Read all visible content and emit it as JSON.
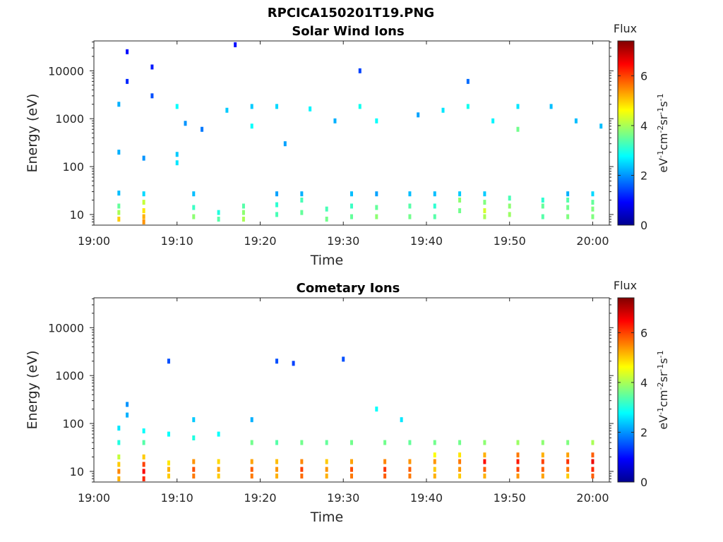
{
  "figure_title": "RPCICA150201T19.PNG",
  "chart_data": [
    {
      "type": "heatmap",
      "title": "Solar Wind Ions",
      "xlabel": "Time",
      "ylabel": "Energy (eV)",
      "x_ticks": [
        "19:00",
        "19:10",
        "19:20",
        "19:30",
        "19:40",
        "19:50",
        "20:00"
      ],
      "x_range": [
        "19:00",
        "20:02"
      ],
      "y_scale": "log",
      "y_ticks": [
        "10",
        "100",
        "1000",
        "10000"
      ],
      "y_tick_values": [
        10,
        100,
        1000,
        10000
      ],
      "y_range": [
        6,
        42000
      ],
      "colorbar": {
        "label": "Flux",
        "units": "eV-1cm-2sr-1s-1",
        "range": [
          0,
          7.4
        ],
        "ticks": [
          "0",
          "2",
          "4",
          "6"
        ],
        "tick_values": [
          0,
          2,
          4,
          6
        ],
        "colormap": "jet"
      },
      "cells": [
        [
          "19:03",
          8,
          5.0
        ],
        [
          "19:03",
          11,
          4.0
        ],
        [
          "19:03",
          15,
          3.5
        ],
        [
          "19:03",
          28,
          2.3
        ],
        [
          "19:03",
          200,
          2.2
        ],
        [
          "19:03",
          2000,
          2.2
        ],
        [
          "19:04",
          6000,
          1.2
        ],
        [
          "19:04",
          25000,
          1.0
        ],
        [
          "19:06",
          7,
          5.4
        ],
        [
          "19:06",
          9,
          5.2
        ],
        [
          "19:06",
          12,
          4.8
        ],
        [
          "19:06",
          18,
          4.2
        ],
        [
          "19:06",
          27,
          2.5
        ],
        [
          "19:06",
          150,
          2.0
        ],
        [
          "19:07",
          3000,
          1.5
        ],
        [
          "19:07",
          12000,
          1.1
        ],
        [
          "19:10",
          180,
          2.4
        ],
        [
          "19:10",
          120,
          2.6
        ],
        [
          "19:10",
          1800,
          2.8
        ],
        [
          "19:11",
          800,
          2.0
        ],
        [
          "19:12",
          9,
          3.8
        ],
        [
          "19:12",
          14,
          3.2
        ],
        [
          "19:12",
          27,
          2.3
        ],
        [
          "19:13",
          600,
          1.8
        ],
        [
          "19:15",
          8,
          3.4
        ],
        [
          "19:15",
          11,
          3.0
        ],
        [
          "19:16",
          1500,
          2.4
        ],
        [
          "19:17",
          35000,
          1.0
        ],
        [
          "19:18",
          8,
          4.0
        ],
        [
          "19:18",
          11,
          3.8
        ],
        [
          "19:18",
          15,
          3.4
        ],
        [
          "19:19",
          1800,
          2.4
        ],
        [
          "19:19",
          700,
          2.8
        ],
        [
          "19:22",
          10,
          3.3
        ],
        [
          "19:22",
          16,
          3.1
        ],
        [
          "19:22",
          27,
          2.1
        ],
        [
          "19:22",
          1800,
          2.5
        ],
        [
          "19:23",
          300,
          2.1
        ],
        [
          "19:25",
          11,
          3.5
        ],
        [
          "19:25",
          20,
          3.3
        ],
        [
          "19:25",
          27,
          2.2
        ],
        [
          "19:26",
          1600,
          2.7
        ],
        [
          "19:28",
          8,
          3.6
        ],
        [
          "19:28",
          13,
          3.3
        ],
        [
          "19:29",
          900,
          2.2
        ],
        [
          "19:31",
          9,
          3.5
        ],
        [
          "19:31",
          15,
          3.2
        ],
        [
          "19:31",
          27,
          2.3
        ],
        [
          "19:32",
          1800,
          2.9
        ],
        [
          "19:32",
          10000,
          1.4
        ],
        [
          "19:34",
          9,
          3.8
        ],
        [
          "19:34",
          14,
          3.5
        ],
        [
          "19:34",
          27,
          2.1
        ],
        [
          "19:34",
          900,
          2.8
        ],
        [
          "19:38",
          9,
          3.6
        ],
        [
          "19:38",
          15,
          3.4
        ],
        [
          "19:38",
          27,
          2.3
        ],
        [
          "19:39",
          1200,
          2.1
        ],
        [
          "19:41",
          9,
          3.4
        ],
        [
          "19:41",
          15,
          3.1
        ],
        [
          "19:41",
          27,
          2.3
        ],
        [
          "19:42",
          1500,
          2.6
        ],
        [
          "19:44",
          12,
          3.6
        ],
        [
          "19:44",
          20,
          3.8
        ],
        [
          "19:44",
          27,
          2.4
        ],
        [
          "19:45",
          1800,
          2.9
        ],
        [
          "19:45",
          6000,
          1.7
        ],
        [
          "19:47",
          9,
          4.0
        ],
        [
          "19:47",
          12,
          4.3
        ],
        [
          "19:47",
          18,
          3.7
        ],
        [
          "19:47",
          27,
          2.4
        ],
        [
          "19:48",
          900,
          2.7
        ],
        [
          "19:50",
          10,
          3.9
        ],
        [
          "19:50",
          15,
          3.8
        ],
        [
          "19:50",
          22,
          3.3
        ],
        [
          "19:51",
          1800,
          2.6
        ],
        [
          "19:51",
          600,
          3.6
        ],
        [
          "19:54",
          9,
          3.4
        ],
        [
          "19:54",
          15,
          3.5
        ],
        [
          "19:54",
          20,
          3.1
        ],
        [
          "19:55",
          1800,
          2.3
        ],
        [
          "19:57",
          9,
          3.7
        ],
        [
          "19:57",
          14,
          3.6
        ],
        [
          "19:57",
          20,
          3.4
        ],
        [
          "19:57",
          27,
          2.2
        ],
        [
          "19:58",
          900,
          2.3
        ],
        [
          "20:00",
          9,
          3.7
        ],
        [
          "20:00",
          13,
          3.7
        ],
        [
          "20:00",
          18,
          3.5
        ],
        [
          "20:00",
          27,
          2.5
        ],
        [
          "20:01",
          700,
          2.3
        ]
      ]
    },
    {
      "type": "heatmap",
      "title": "Cometary Ions",
      "xlabel": "Time",
      "ylabel": "Energy (eV)",
      "x_ticks": [
        "19:00",
        "19:10",
        "19:20",
        "19:30",
        "19:40",
        "19:50",
        "20:00"
      ],
      "x_range": [
        "19:00",
        "20:02"
      ],
      "y_scale": "log",
      "y_ticks": [
        "10",
        "100",
        "1000",
        "10000"
      ],
      "y_tick_values": [
        10,
        100,
        1000,
        10000
      ],
      "y_range": [
        6,
        42000
      ],
      "colorbar": {
        "label": "Flux",
        "units": "eV-1cm-2sr-1s-1",
        "range": [
          0,
          7.4
        ],
        "ticks": [
          "0",
          "2",
          "4",
          "6"
        ],
        "tick_values": [
          0,
          2,
          4,
          6
        ],
        "colormap": "jet"
      },
      "cells": [
        [
          "19:03",
          7,
          5.2
        ],
        [
          "19:03",
          10,
          5.5
        ],
        [
          "19:03",
          14,
          5.0
        ],
        [
          "19:03",
          20,
          4.2
        ],
        [
          "19:03",
          40,
          3.0
        ],
        [
          "19:03",
          80,
          2.6
        ],
        [
          "19:04",
          150,
          2.2
        ],
        [
          "19:04",
          250,
          2.0
        ],
        [
          "19:06",
          7,
          6.2
        ],
        [
          "19:06",
          10,
          6.5
        ],
        [
          "19:06",
          14,
          6.0
        ],
        [
          "19:06",
          20,
          5.0
        ],
        [
          "19:06",
          40,
          3.4
        ],
        [
          "19:06",
          70,
          2.8
        ],
        [
          "19:09",
          8,
          5.0
        ],
        [
          "19:09",
          11,
          5.2
        ],
        [
          "19:09",
          15,
          4.8
        ],
        [
          "19:09",
          60,
          2.8
        ],
        [
          "19:09",
          2000,
          1.5
        ],
        [
          "19:12",
          8,
          5.6
        ],
        [
          "19:12",
          11,
          5.9
        ],
        [
          "19:12",
          16,
          5.4
        ],
        [
          "19:12",
          50,
          3.0
        ],
        [
          "19:12",
          120,
          2.4
        ],
        [
          "19:15",
          8,
          5.0
        ],
        [
          "19:15",
          11,
          5.3
        ],
        [
          "19:15",
          16,
          4.9
        ],
        [
          "19:15",
          60,
          2.8
        ],
        [
          "19:19",
          8,
          5.6
        ],
        [
          "19:19",
          11,
          5.8
        ],
        [
          "19:19",
          16,
          5.3
        ],
        [
          "19:19",
          40,
          3.6
        ],
        [
          "19:19",
          120,
          2.2
        ],
        [
          "19:22",
          8,
          5.2
        ],
        [
          "19:22",
          11,
          5.4
        ],
        [
          "19:22",
          16,
          5.1
        ],
        [
          "19:22",
          40,
          3.4
        ],
        [
          "19:22",
          2000,
          1.5
        ],
        [
          "19:25",
          8,
          5.7
        ],
        [
          "19:25",
          11,
          6.0
        ],
        [
          "19:25",
          16,
          5.5
        ],
        [
          "19:25",
          40,
          3.6
        ],
        [
          "19:24",
          1800,
          1.4
        ],
        [
          "19:28",
          8,
          5.2
        ],
        [
          "19:28",
          11,
          5.4
        ],
        [
          "19:28",
          16,
          5.0
        ],
        [
          "19:28",
          40,
          3.5
        ],
        [
          "19:31",
          8,
          5.6
        ],
        [
          "19:31",
          11,
          5.9
        ],
        [
          "19:31",
          16,
          5.3
        ],
        [
          "19:31",
          40,
          3.6
        ],
        [
          "19:30",
          2200,
          1.5
        ],
        [
          "19:35",
          8,
          5.8
        ],
        [
          "19:35",
          11,
          6.1
        ],
        [
          "19:35",
          16,
          5.5
        ],
        [
          "19:35",
          40,
          3.6
        ],
        [
          "19:34",
          200,
          2.8
        ],
        [
          "19:38",
          8,
          5.6
        ],
        [
          "19:38",
          11,
          5.8
        ],
        [
          "19:38",
          16,
          5.4
        ],
        [
          "19:38",
          40,
          3.5
        ],
        [
          "19:37",
          120,
          2.6
        ],
        [
          "19:41",
          8,
          5.2
        ],
        [
          "19:41",
          11,
          5.0
        ],
        [
          "19:41",
          16,
          5.4
        ],
        [
          "19:41",
          22,
          4.6
        ],
        [
          "19:41",
          40,
          3.6
        ],
        [
          "19:44",
          8,
          5.0
        ],
        [
          "19:44",
          11,
          5.4
        ],
        [
          "19:44",
          16,
          5.6
        ],
        [
          "19:44",
          22,
          4.8
        ],
        [
          "19:44",
          40,
          3.6
        ],
        [
          "19:47",
          8,
          5.2
        ],
        [
          "19:47",
          11,
          5.8
        ],
        [
          "19:47",
          16,
          6.4
        ],
        [
          "19:47",
          22,
          5.2
        ],
        [
          "19:47",
          40,
          3.8
        ],
        [
          "19:51",
          8,
          5.4
        ],
        [
          "19:51",
          11,
          6.0
        ],
        [
          "19:51",
          16,
          6.3
        ],
        [
          "19:51",
          22,
          5.6
        ],
        [
          "19:51",
          40,
          3.9
        ],
        [
          "19:54",
          8,
          5.3
        ],
        [
          "19:54",
          11,
          5.8
        ],
        [
          "19:54",
          16,
          6.0
        ],
        [
          "19:54",
          22,
          5.2
        ],
        [
          "19:54",
          40,
          3.8
        ],
        [
          "19:57",
          8,
          5.0
        ],
        [
          "19:57",
          11,
          5.6
        ],
        [
          "19:57",
          16,
          6.1
        ],
        [
          "19:57",
          22,
          5.3
        ],
        [
          "19:57",
          40,
          3.7
        ],
        [
          "20:00",
          8,
          5.8
        ],
        [
          "20:00",
          11,
          6.2
        ],
        [
          "20:00",
          16,
          6.6
        ],
        [
          "20:00",
          22,
          5.8
        ],
        [
          "20:00",
          40,
          4.0
        ]
      ]
    }
  ]
}
